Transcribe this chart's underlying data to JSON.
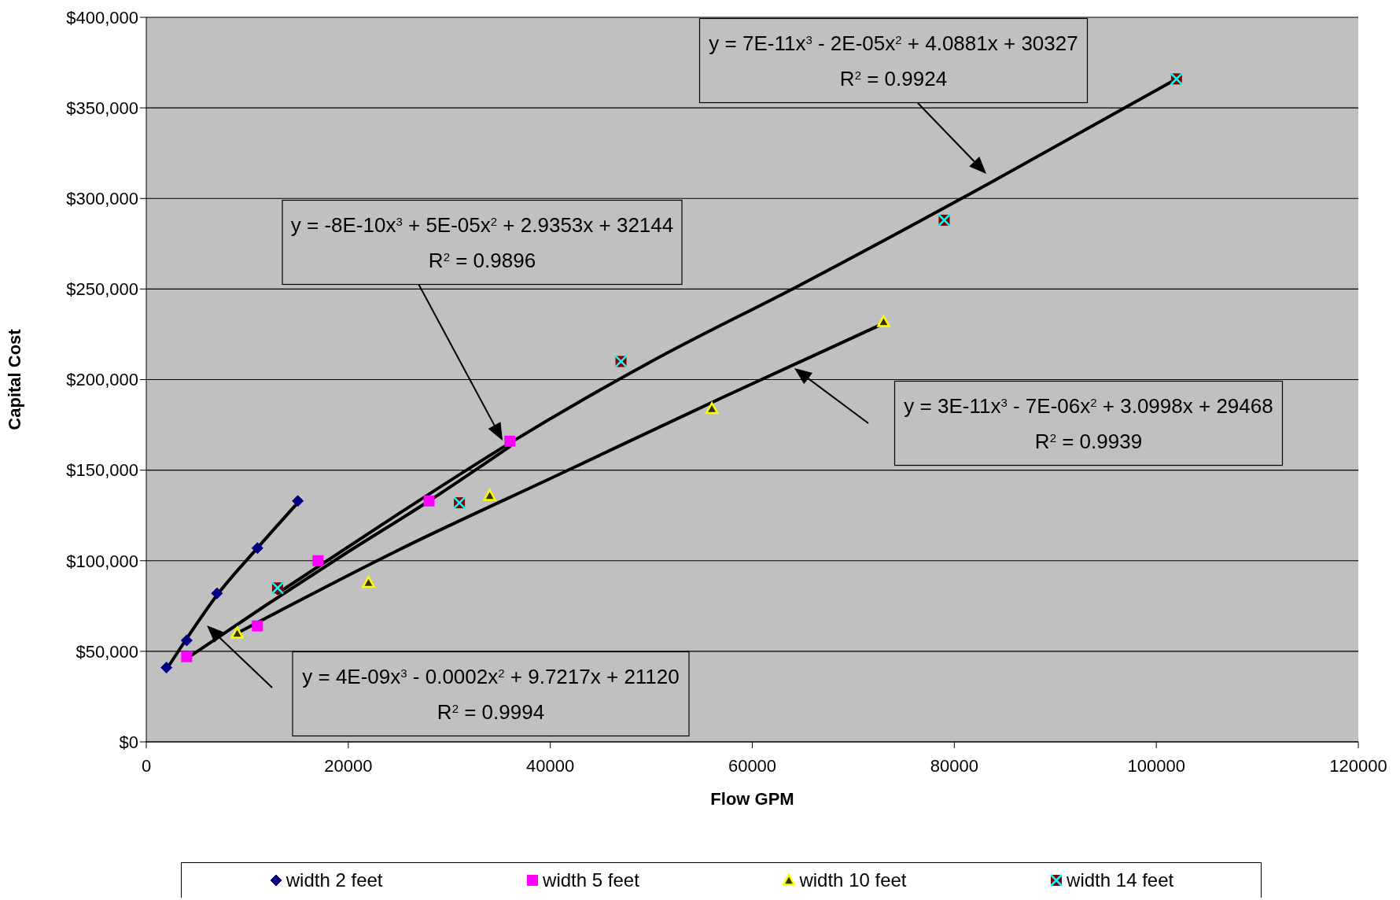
{
  "chart_data": {
    "type": "scatter",
    "xlabel": "Flow GPM",
    "ylabel": "Capital Cost",
    "xlim": [
      0,
      120000
    ],
    "xticks": [
      0,
      20000,
      40000,
      60000,
      80000,
      100000,
      120000
    ],
    "ylim": [
      0,
      400000
    ],
    "yticks": [
      {
        "value": 0,
        "label": "$0"
      },
      {
        "value": 50000,
        "label": "$50,000"
      },
      {
        "value": 100000,
        "label": "$100,000"
      },
      {
        "value": 150000,
        "label": "$150,000"
      },
      {
        "value": 200000,
        "label": "$200,000"
      },
      {
        "value": 250000,
        "label": "$250,000"
      },
      {
        "value": 300000,
        "label": "$300,000"
      },
      {
        "value": 350000,
        "label": "$350,000"
      },
      {
        "value": 400000,
        "label": "$400,000"
      }
    ],
    "grid": "y",
    "legend": "bottom",
    "series": [
      {
        "name": "width 2 feet",
        "color": "#000080",
        "marker": "diamond",
        "x": [
          2000,
          4000,
          7000,
          11000,
          15000
        ],
        "values": [
          41000,
          56000,
          82000,
          107000,
          133000
        ]
      },
      {
        "name": "width 5 feet",
        "color": "#ff00ff",
        "marker": "square",
        "x": [
          4000,
          11000,
          17000,
          28000,
          36000
        ],
        "values": [
          47000,
          64000,
          100000,
          133000,
          166000
        ]
      },
      {
        "name": "width 10 feet",
        "color": "#ffff00",
        "marker": "triangle",
        "x": [
          9000,
          22000,
          34000,
          56000,
          73000
        ],
        "values": [
          60000,
          88000,
          136000,
          184000,
          232000
        ]
      },
      {
        "name": "width 14 feet",
        "color": "#00ffff",
        "marker": "cross",
        "x": [
          13000,
          31000,
          47000,
          79000,
          102000
        ],
        "values": [
          85000,
          132000,
          210000,
          288000,
          366000
        ]
      },
      {
        "type": "line",
        "color": "#000000",
        "marker": "none",
        "x": [
          2000,
          4000,
          7000,
          11000,
          15000
        ],
        "values": [
          40000,
          57000,
          81000,
          107000,
          132000
        ]
      },
      {
        "type": "line",
        "color": "#000000",
        "marker": "none",
        "x": [
          4000,
          12000,
          20000,
          28000,
          36000
        ],
        "values": [
          46000,
          76000,
          105000,
          133000,
          163000
        ]
      },
      {
        "type": "line",
        "color": "#000000",
        "marker": "none",
        "x": [
          9000,
          25000,
          41000,
          57000,
          73000
        ],
        "values": [
          60000,
          106000,
          148000,
          190000,
          231000
        ]
      },
      {
        "type": "line",
        "color": "#000000",
        "marker": "none",
        "x": [
          13000,
          25000,
          36000,
          50000,
          65000,
          84000,
          102000
        ],
        "values": [
          82000,
          126000,
          165000,
          210000,
          253000,
          310000,
          366000
        ]
      }
    ],
    "annotations": [
      "y = 7E-11x$^{3}$ - 2E-05x$^{2}$ + 4.0881x + 30327",
      "R$^{2}$ = 0.9924",
      "y = -8E-10x$^{3}$ + 5E-05x$^{2}$ + 2.9353x + 32144",
      "R$^{2}$ = 0.9896",
      "y = 3E-11x$^{3}$ - 7E-06x$^{2}$ + 3.0998x + 29468",
      "R$^{2}$ = 0.9939",
      "y = 4E-09x$^{3}$ - 0.0002x$^{2}$ + 9.7217x + 21120",
      "R$^{2}$ = 0.9994"
    ]
  }
}
